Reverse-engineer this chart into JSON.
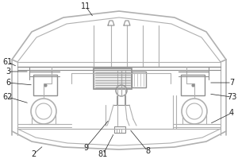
{
  "bg_color": "#ffffff",
  "lc": "#b0b0b0",
  "dc": "#909090",
  "label_color": "#222222",
  "figsize": [
    3.0,
    2.0
  ],
  "dpi": 100
}
